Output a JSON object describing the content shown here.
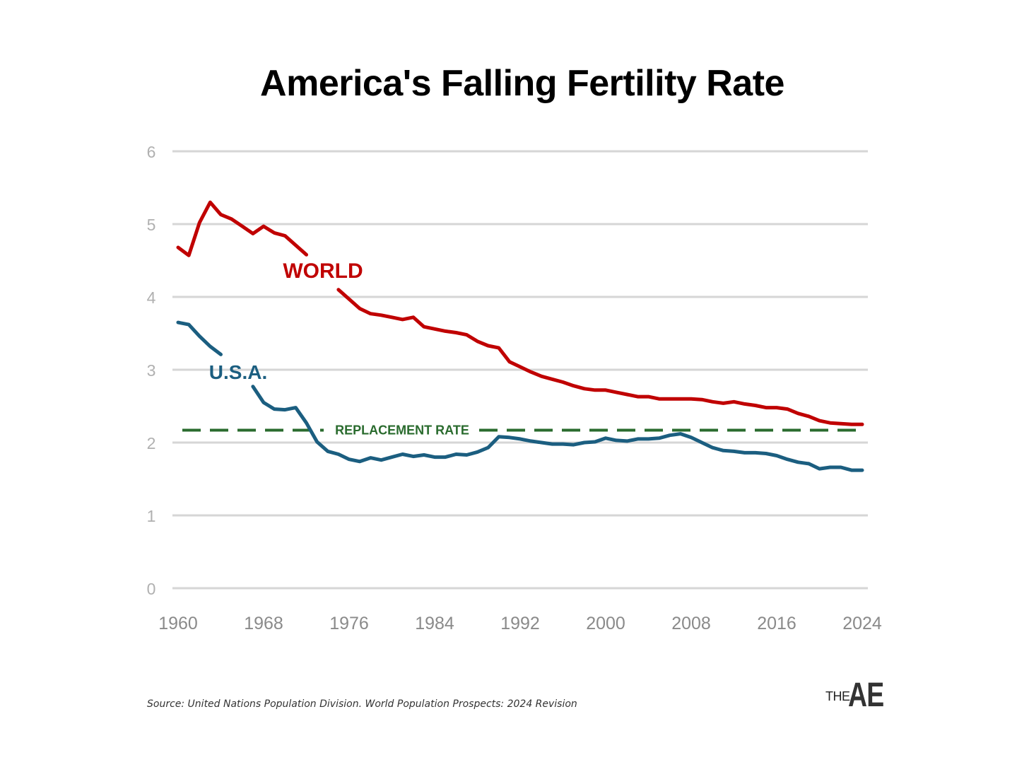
{
  "chart_data": {
    "type": "line",
    "title": "America's Falling Fertility Rate",
    "xlabel": "",
    "ylabel": "",
    "xlim": [
      1960,
      2024
    ],
    "ylim": [
      0,
      6
    ],
    "xticks": [
      1960,
      1968,
      1976,
      1984,
      1992,
      2000,
      2008,
      2016,
      2024
    ],
    "yticks": [
      0,
      1,
      2,
      3,
      4,
      5,
      6
    ],
    "grid": true,
    "x": [
      1960,
      1961,
      1962,
      1963,
      1964,
      1965,
      1966,
      1967,
      1968,
      1969,
      1970,
      1971,
      1972,
      1973,
      1974,
      1975,
      1976,
      1977,
      1978,
      1979,
      1980,
      1981,
      1982,
      1983,
      1984,
      1985,
      1986,
      1987,
      1988,
      1989,
      1990,
      1991,
      1992,
      1993,
      1994,
      1995,
      1996,
      1997,
      1998,
      1999,
      2000,
      2001,
      2002,
      2003,
      2004,
      2005,
      2006,
      2007,
      2008,
      2009,
      2010,
      2011,
      2012,
      2013,
      2014,
      2015,
      2016,
      2017,
      2018,
      2019,
      2020,
      2021,
      2022,
      2023,
      2024
    ],
    "series": [
      {
        "name": "WORLD",
        "color": "#c00000",
        "values": [
          4.68,
          4.57,
          5.02,
          5.3,
          5.13,
          5.07,
          4.97,
          4.87,
          4.97,
          4.88,
          4.84,
          4.71,
          4.58,
          null,
          null,
          4.1,
          3.97,
          3.84,
          3.77,
          3.75,
          3.72,
          3.69,
          3.72,
          3.59,
          3.56,
          3.53,
          3.51,
          3.48,
          3.39,
          3.33,
          3.3,
          3.11,
          3.04,
          2.97,
          2.91,
          2.87,
          2.83,
          2.78,
          2.74,
          2.72,
          2.72,
          2.69,
          2.66,
          2.63,
          2.63,
          2.6,
          2.6,
          2.6,
          2.6,
          2.59,
          2.56,
          2.54,
          2.56,
          2.53,
          2.51,
          2.48,
          2.48,
          2.46,
          2.4,
          2.36,
          2.3,
          2.27,
          2.26,
          2.25,
          2.25
        ]
      },
      {
        "name": "U.S.A.",
        "color": "#1b5e80",
        "values": [
          3.65,
          3.62,
          3.46,
          3.32,
          3.21,
          null,
          null,
          2.77,
          2.55,
          2.46,
          2.45,
          2.48,
          2.27,
          2.01,
          1.88,
          1.84,
          1.77,
          1.74,
          1.79,
          1.76,
          1.8,
          1.84,
          1.81,
          1.83,
          1.8,
          1.8,
          1.84,
          1.83,
          1.87,
          1.93,
          2.08,
          2.07,
          2.05,
          2.02,
          2.0,
          1.98,
          1.98,
          1.97,
          2.0,
          2.01,
          2.06,
          2.03,
          2.02,
          2.05,
          2.05,
          2.06,
          2.1,
          2.12,
          2.07,
          2.0,
          1.93,
          1.89,
          1.88,
          1.86,
          1.86,
          1.85,
          1.82,
          1.77,
          1.73,
          1.71,
          1.64,
          1.66,
          1.66,
          1.62,
          1.62
        ]
      }
    ],
    "reference_line": {
      "label": "REPLACEMENT RATE",
      "value": 2.17,
      "color": "#2a6b2e"
    },
    "grid_color": "#d6d6d6",
    "tick_color": "#8a8a8a",
    "y_tick_color": "#b0b0b0",
    "source": "Source: United Nations Population Division. World Population Prospects: 2024 Revision",
    "logo": {
      "small": "THE",
      "big": "AE"
    }
  }
}
